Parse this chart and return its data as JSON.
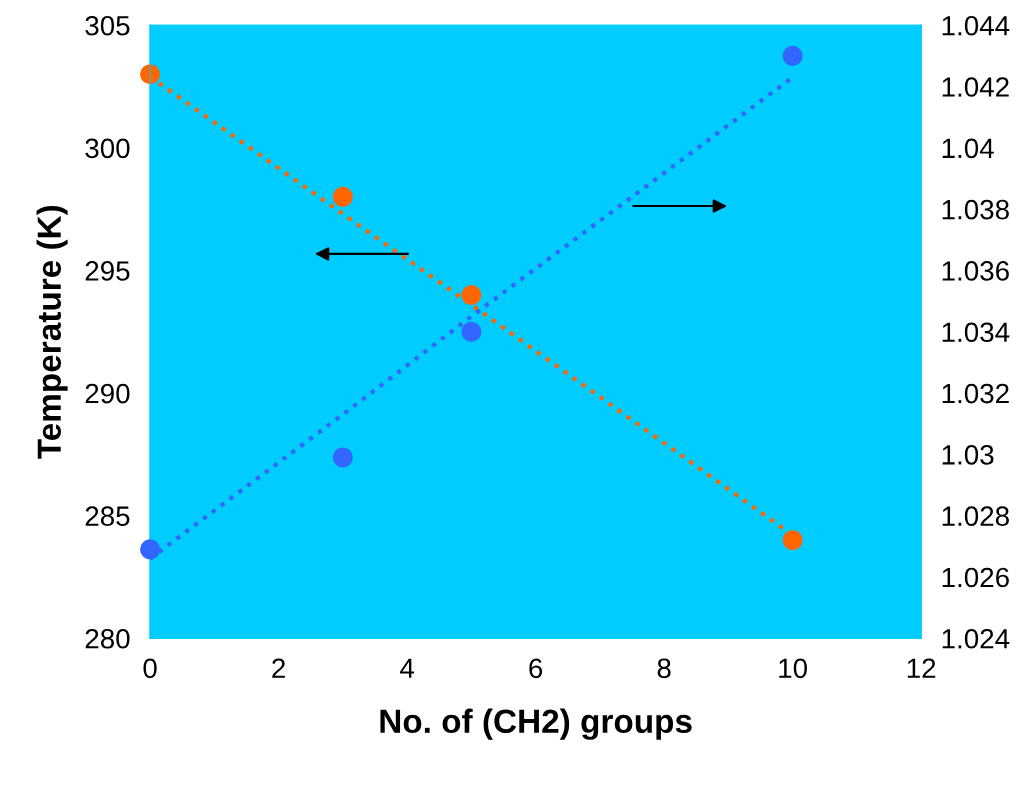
{
  "chart_data": {
    "type": "scatter",
    "xlabel": "No. of (CH2) groups",
    "ylabel": "Temperature (K)",
    "x": [
      0,
      3,
      5,
      10
    ],
    "series": [
      {
        "color": "#ff6600",
        "values": [
          303.0,
          298.0,
          294.0,
          284.0
        ]
      },
      {
        "color": "#3366ff",
        "axis": "y2",
        "values": [
          1.0269,
          1.0299,
          1.034,
          1.043
        ]
      },
      {
        "type": "line",
        "color": "#ff6600",
        "values": [
          302.9,
          297.3,
          293.6,
          284.2
        ],
        "line_style": "dotted",
        "marker": "none"
      },
      {
        "type": "line",
        "color": "#3366ff",
        "axis": "y2",
        "values": [
          1.0266,
          1.0313,
          1.0345,
          1.0423
        ],
        "line_style": "dotted",
        "marker": "none"
      }
    ],
    "marker": "circle",
    "xlim": [
      0,
      12
    ],
    "xticks": [
      0,
      2,
      4,
      6,
      8,
      10,
      12
    ],
    "ylim": [
      280,
      305
    ],
    "yticks": [
      280,
      285,
      290,
      295,
      300,
      305
    ],
    "y2lim": [
      1.024,
      1.044
    ],
    "y2ticks": [
      1.024,
      1.026,
      1.028,
      1.03,
      1.032,
      1.034,
      1.036,
      1.038,
      1.04,
      1.042,
      1.044
    ],
    "grid": false,
    "legend": false
  }
}
